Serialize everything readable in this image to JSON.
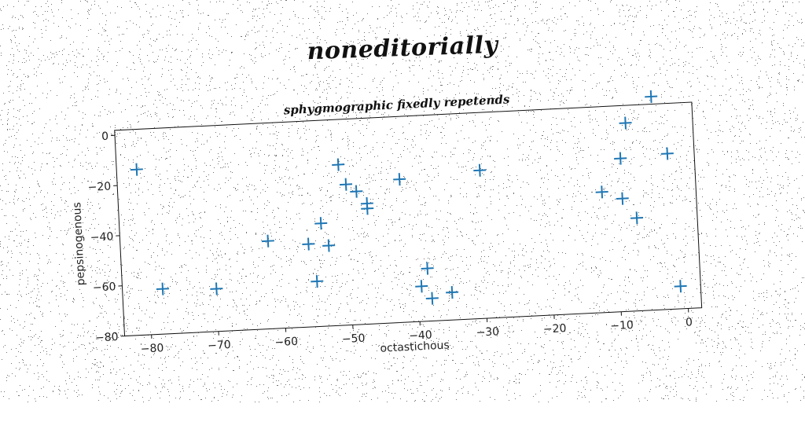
{
  "suptitle": "noneditorially",
  "chart_data": {
    "type": "scatter",
    "title": "sphygmographic fixedly repetends",
    "xlabel": "octastichous",
    "ylabel": "pepsinogenous",
    "xlim": [
      -84,
      2
    ],
    "ylim": [
      -80,
      2
    ],
    "xticks": [
      -80,
      -70,
      -60,
      -50,
      -40,
      -30,
      -20,
      -10,
      0
    ],
    "yticks": [
      0,
      -20,
      -40,
      -60,
      -80
    ],
    "marker": "+",
    "color": "#1f77b4",
    "grid": false,
    "points": [
      {
        "x": -81,
        "y": -14
      },
      {
        "x": -78,
        "y": -62
      },
      {
        "x": -70,
        "y": -63
      },
      {
        "x": -62,
        "y": -45
      },
      {
        "x": -56,
        "y": -47
      },
      {
        "x": -55,
        "y": -62
      },
      {
        "x": -54,
        "y": -39
      },
      {
        "x": -53,
        "y": -48
      },
      {
        "x": -51,
        "y": -16
      },
      {
        "x": -50,
        "y": -24
      },
      {
        "x": -48.5,
        "y": -27
      },
      {
        "x": -47,
        "y": -32
      },
      {
        "x": -47,
        "y": -34
      },
      {
        "x": -42,
        "y": -23
      },
      {
        "x": -39.5,
        "y": -66
      },
      {
        "x": -38.5,
        "y": -59
      },
      {
        "x": -38,
        "y": -71
      },
      {
        "x": -35,
        "y": -69
      },
      {
        "x": -30,
        "y": -21
      },
      {
        "x": -12,
        "y": -32
      },
      {
        "x": -9,
        "y": -35
      },
      {
        "x": -9,
        "y": -19
      },
      {
        "x": -8,
        "y": -5
      },
      {
        "x": -7,
        "y": -43
      },
      {
        "x": -4,
        "y": 5
      },
      {
        "x": -2,
        "y": -18
      },
      {
        "x": -1,
        "y": -71
      }
    ]
  }
}
